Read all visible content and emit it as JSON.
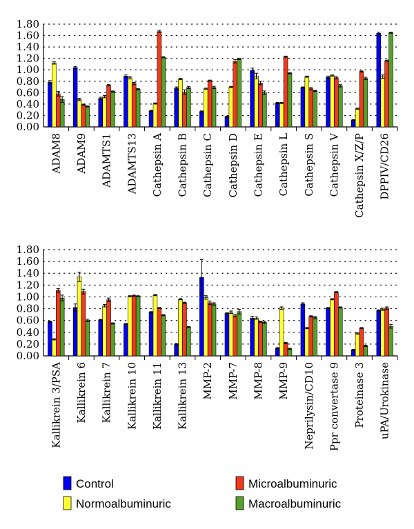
{
  "chart_data": [
    {
      "type": "bar",
      "ylim": [
        0,
        1.8
      ],
      "yticks": [
        "0.00",
        "0.20",
        "0.40",
        "0.60",
        "0.80",
        "1.00",
        "1.20",
        "1.40",
        "1.60",
        "1.80"
      ],
      "grid": "dotted-horizontal",
      "categories": [
        "ADAM8",
        "ADAM9",
        "ADAMTS1",
        "ADAMTS13",
        "Cathepsin A",
        "Cathepsin B",
        "Cathepsin C",
        "Cathepsin D",
        "Cathepsin E",
        "Cathepsin L",
        "Cathepsin S",
        "Cathepsin V",
        "Cathepsin X/Z/P",
        "DPPIV/CD26"
      ],
      "series": [
        {
          "name": "Control",
          "values": [
            0.78,
            1.04,
            0.5,
            0.89,
            0.28,
            0.68,
            0.27,
            0.18,
            0.99,
            0.42,
            0.69,
            0.87,
            0.12,
            1.64
          ],
          "errors": [
            0.03,
            0.02,
            0.02,
            0.02,
            0.01,
            0.02,
            0.01,
            0.01,
            0.04,
            0.01,
            0.01,
            0.02,
            0.01,
            0.02
          ]
        },
        {
          "name": "Normoalbuminuric",
          "values": [
            1.12,
            0.48,
            0.53,
            0.86,
            0.41,
            0.84,
            0.67,
            0.7,
            0.89,
            0.42,
            0.88,
            0.9,
            0.32,
            0.88
          ],
          "errors": [
            0.02,
            0.02,
            0.02,
            0.02,
            0.01,
            0.01,
            0.01,
            0.01,
            0.05,
            0.01,
            0.01,
            0.01,
            0.01,
            0.03
          ]
        },
        {
          "name": "Microalbuminuric",
          "values": [
            0.58,
            0.39,
            0.73,
            0.76,
            1.67,
            0.61,
            0.81,
            1.15,
            0.77,
            1.23,
            0.67,
            0.86,
            0.97,
            1.16
          ],
          "errors": [
            0.04,
            0.01,
            0.01,
            0.02,
            0.02,
            0.04,
            0.01,
            0.03,
            0.03,
            0.01,
            0.02,
            0.02,
            0.01,
            0.01
          ]
        },
        {
          "name": "Macroalbuminuric",
          "values": [
            0.48,
            0.36,
            0.62,
            0.66,
            1.22,
            0.69,
            0.69,
            1.19,
            0.6,
            0.94,
            0.63,
            0.72,
            0.85,
            1.65
          ],
          "errors": [
            0.05,
            0.01,
            0.01,
            0.01,
            0.01,
            0.02,
            0.02,
            0.01,
            0.03,
            0.01,
            0.01,
            0.02,
            0.02,
            0.01
          ]
        }
      ]
    },
    {
      "type": "bar",
      "ylim": [
        0,
        1.8
      ],
      "yticks": [
        "0.00",
        "0.20",
        "0.40",
        "0.60",
        "0.80",
        "1.00",
        "1.20",
        "1.40",
        "1.60",
        "1.80"
      ],
      "grid": "dotted-horizontal",
      "categories": [
        "Kallikrein 3/PSA",
        "Kallikrein 6",
        "Kallikrein 7",
        "Kallikrein 10",
        "Kallikrein 11",
        "Kallikrein 13",
        "MMP-2",
        "MMP-7",
        "MMP-8",
        "MMP-9",
        "Neprilysin/CD10",
        "Ppr convertase 9",
        "Proteinase 3",
        "uPA/Urokinase"
      ],
      "series": [
        {
          "name": "Control",
          "values": [
            0.58,
            0.82,
            0.61,
            0.54,
            0.74,
            0.2,
            1.33,
            0.72,
            0.64,
            0.13,
            0.88,
            0.81,
            0.1,
            0.77
          ],
          "errors": [
            0.01,
            0.06,
            0.01,
            0.01,
            0.01,
            0.01,
            0.3,
            0.01,
            0.03,
            0.01,
            0.02,
            0.01,
            0.01,
            0.01
          ]
        },
        {
          "name": "Normoalbuminuric",
          "values": [
            0.28,
            1.34,
            0.85,
            1.01,
            1.03,
            0.96,
            0.99,
            0.74,
            0.64,
            0.81,
            0.47,
            0.96,
            0.38,
            0.79
          ],
          "errors": [
            0.01,
            0.08,
            0.02,
            0.01,
            0.01,
            0.01,
            0.03,
            0.02,
            0.02,
            0.02,
            0.01,
            0.01,
            0.01,
            0.02
          ]
        },
        {
          "name": "Microalbuminuric",
          "values": [
            1.11,
            1.09,
            0.95,
            1.02,
            0.81,
            0.9,
            0.9,
            0.68,
            0.58,
            0.22,
            0.67,
            1.08,
            0.47,
            0.81
          ],
          "errors": [
            0.03,
            0.04,
            0.03,
            0.01,
            0.01,
            0.01,
            0.03,
            0.02,
            0.01,
            0.01,
            0.01,
            0.01,
            0.01,
            0.02
          ]
        },
        {
          "name": "Macroalbuminuric",
          "values": [
            0.98,
            0.6,
            0.55,
            1.01,
            0.69,
            0.49,
            0.88,
            0.75,
            0.57,
            0.12,
            0.65,
            0.82,
            0.17,
            0.5
          ],
          "errors": [
            0.05,
            0.02,
            0.01,
            0.01,
            0.01,
            0.01,
            0.02,
            0.04,
            0.02,
            0.01,
            0.02,
            0.01,
            0.01,
            0.03
          ]
        }
      ]
    }
  ],
  "legend": [
    {
      "name": "Control",
      "color": "#0000ee"
    },
    {
      "name": "Microalbuminuric",
      "color": "#ee3b1c"
    },
    {
      "name": "Normoalbuminuric",
      "color": "#ffff33"
    },
    {
      "name": "Macroalbuminuric",
      "color": "#56a02c"
    }
  ],
  "colors": [
    "#0000ee",
    "#ffff33",
    "#ee3b1c",
    "#56a02c"
  ]
}
